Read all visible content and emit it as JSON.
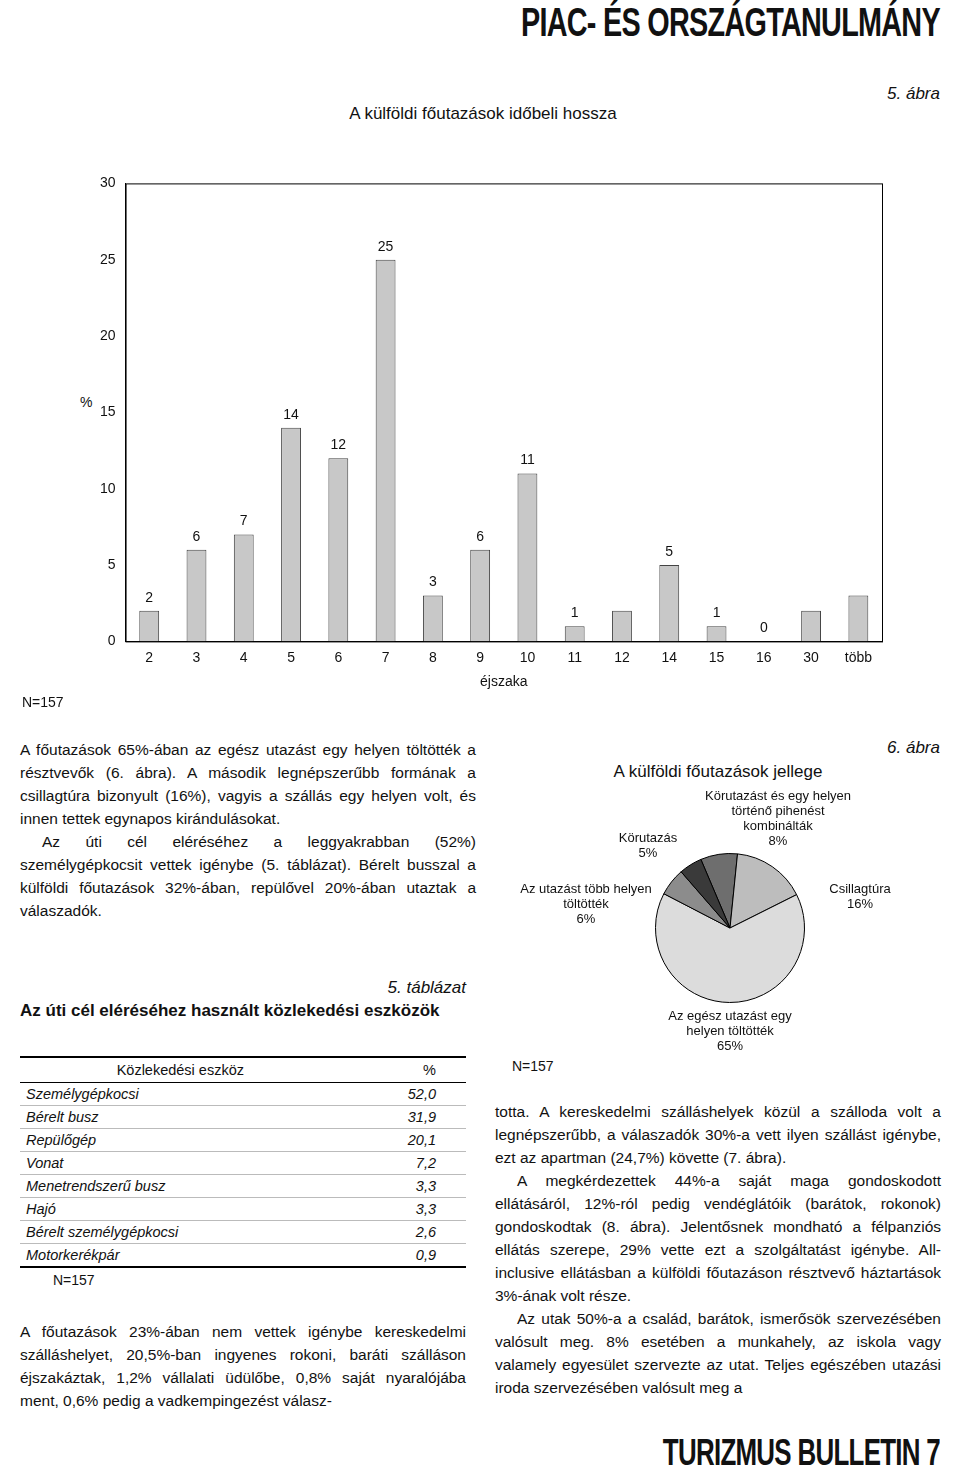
{
  "header": {
    "title": "PIAC- ÉS ORSZÁGTANULMÁNY"
  },
  "footer": "TURIZMUS BULLETIN 7",
  "chart_data": [
    {
      "figure_label": "5. ábra",
      "type": "bar",
      "title": "A külföldi főutazások időbeli hossza",
      "y_label": "%",
      "x_label": "éjszaka",
      "categories": [
        "2",
        "3",
        "4",
        "5",
        "6",
        "7",
        "8",
        "9",
        "10",
        "11",
        "12",
        "14",
        "15",
        "16",
        "30",
        "több"
      ],
      "values": [
        2,
        6,
        7,
        14,
        12,
        25,
        3,
        6,
        11,
        1,
        2,
        5,
        1,
        0,
        2,
        3
      ],
      "value_labels": [
        "2",
        "6",
        "7",
        "14",
        "12",
        "25",
        "3",
        "6",
        "11",
        "1",
        null,
        "5",
        "1",
        "0",
        null,
        null
      ],
      "data_labels": true,
      "color": "#c8c8c8",
      "ylim": [
        0,
        30
      ],
      "yticks": [
        0,
        5,
        10,
        15,
        20,
        25,
        30
      ],
      "grid": false,
      "note": "N=157"
    },
    {
      "figure_label": "6. ábra",
      "type": "pie",
      "title": "A külföldi főutazások jellege",
      "categories": [
        "Körutazást és egy helyen történő pihenést kombinálták",
        "Csillagtúra",
        "Az egész utazást egy helyen töltötték",
        "Az utazást több helyen töltötték",
        "Körutazás"
      ],
      "values": [
        8,
        16,
        65,
        6,
        5
      ],
      "value_labels": [
        "8%",
        "16%",
        "65%",
        "6%",
        "5%"
      ],
      "data_labels": true,
      "colors": [
        "#6e6e6e",
        "#bdbdbd",
        "#dcdcdc",
        "#8c8c8c",
        "#3a3a3a"
      ],
      "note": "N=157"
    }
  ],
  "table": {
    "label": "5. táblázat",
    "title": "Az úti cél eléréséhez használt közlekedési eszközök",
    "header": [
      "Közlekedési eszköz",
      "%"
    ],
    "rows": [
      [
        "Személygépkocsi",
        "52,0"
      ],
      [
        "Bérelt busz",
        "31,9"
      ],
      [
        "Repülőgép",
        "20,1"
      ],
      [
        "Vonat",
        "7,2"
      ],
      [
        "Menetrendszerű busz",
        "3,3"
      ],
      [
        "Hajó",
        "3,3"
      ],
      [
        "Bérelt személygépkocsi",
        "2,6"
      ],
      [
        "Motorkerékpár",
        "0,9"
      ]
    ],
    "note": "N=157"
  },
  "text": {
    "left_top": [
      "A főutazások 65%-ában az egész utazást egy helyen töltötték a résztvevők (6. ábra). A második legnépszerűbb formának a csillagtúra bizonyult (16%), vagyis a szállás egy helyen volt, és innen tettek egynapos kirándulásokat.",
      "Az úti cél eléréséhez a leggyakrabban (52%) személygépkocsit vettek igénybe (5. táblázat). Bérelt busszal a külföldi főutazások 32%-ában, repülővel 20%-ában utaztak a válaszadók."
    ],
    "left_bottom": [
      "A főutazások 23%-ában nem vettek igénybe kereskedelmi szálláshelyet, 20,5%-ban ingyenes rokoni, baráti szálláson éjszakáztak, 1,2% vállalati üdülőbe, 0,8% saját nyaralójába ment, 0,6% pedig a vadkempingezést válasz-"
    ],
    "right": [
      "totta. A kereskedelmi szálláshelyek közül a szálloda volt a legnépszerűbb, a válaszadók 30%-a vett ilyen szállást igénybe, ezt az apartman (24,7%) követte (7. ábra).",
      "A megkérdezettek 44%-a saját maga gondoskodott ellátásáról, 12%-ról pedig vendéglátóik (barátok, rokonok) gondoskodtak (8. ábra). Jelentősnek mondható a félpanziós ellátás szerepe, 29% vette ezt a szolgáltatást igénybe. All-inclusive ellátásban a külföldi főutazáson résztvevő háztartások 3%-ának volt része.",
      "Az utak 50%-a a család, barátok, ismerősök szervezésében valósult meg. 8% esetében a munkahely, az iskola vagy valamely egyesület szervezte az utat. Teljes egészében utazási iroda szervezésében valósult meg a"
    ]
  }
}
